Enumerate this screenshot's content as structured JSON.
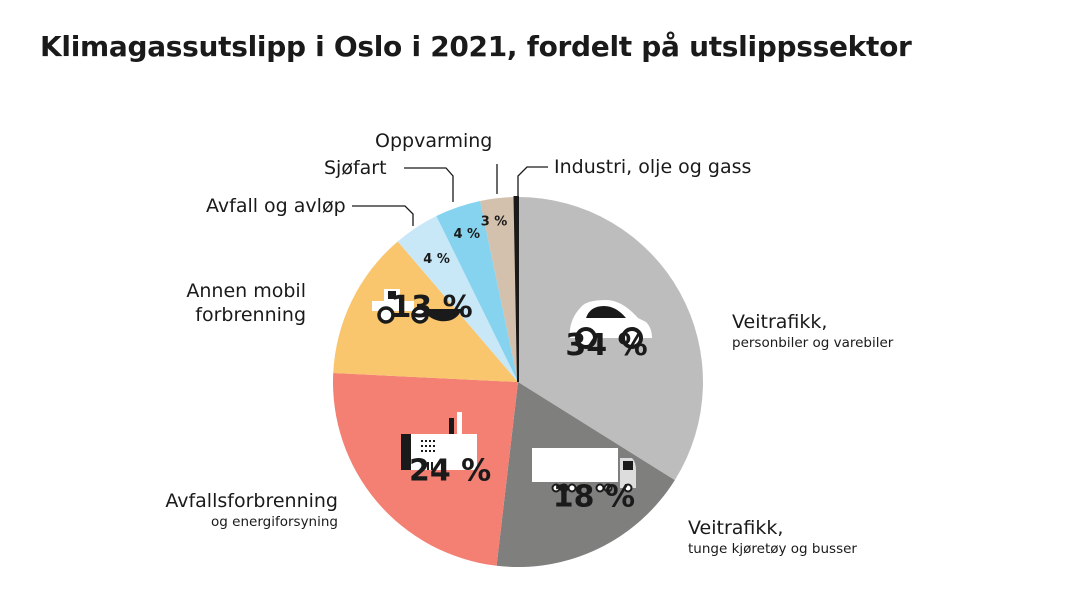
{
  "chart_data": {
    "type": "pie",
    "title": "Klimagassutslipp i Oslo i 2021, fordelt på utslippssektor",
    "start": "top",
    "direction": "clockwise",
    "slices": [
      {
        "name": "Veitrafikk,",
        "sub": "personbiler og varebiler",
        "value": 34,
        "label": "34 %",
        "color": "#bdbdbd",
        "icon": "car-icon"
      },
      {
        "name": "Veitrafikk,",
        "sub": "tunge kjøretøy og busser",
        "value": 18,
        "label": "18 %",
        "color": "#7f7f7e",
        "icon": "truck-icon"
      },
      {
        "name": "Avfallsforbrenning",
        "sub": "og energiforsyning",
        "value": 24,
        "label": "24 %",
        "color": "#f47f73",
        "icon": "factory-icon"
      },
      {
        "name": "Annen mobil forbrenning",
        "sub": "",
        "value": 13,
        "label": "13 %",
        "color": "#f9c56d",
        "icon": "wheel-loader-icon"
      },
      {
        "name": "Avfall og avløp",
        "sub": "",
        "value": 4,
        "label": "4 %",
        "color": "#c8e8f8"
      },
      {
        "name": "Sjøfart",
        "sub": "",
        "value": 4,
        "label": "4 %",
        "color": "#85d3ee"
      },
      {
        "name": "Oppvarming",
        "sub": "",
        "value": 3,
        "label": "3 %",
        "color": "#d3c1ad"
      },
      {
        "name": "Industri, olje og gass",
        "sub": "",
        "value": 0.3,
        "label": "",
        "color": "#1a1a1a"
      }
    ]
  }
}
